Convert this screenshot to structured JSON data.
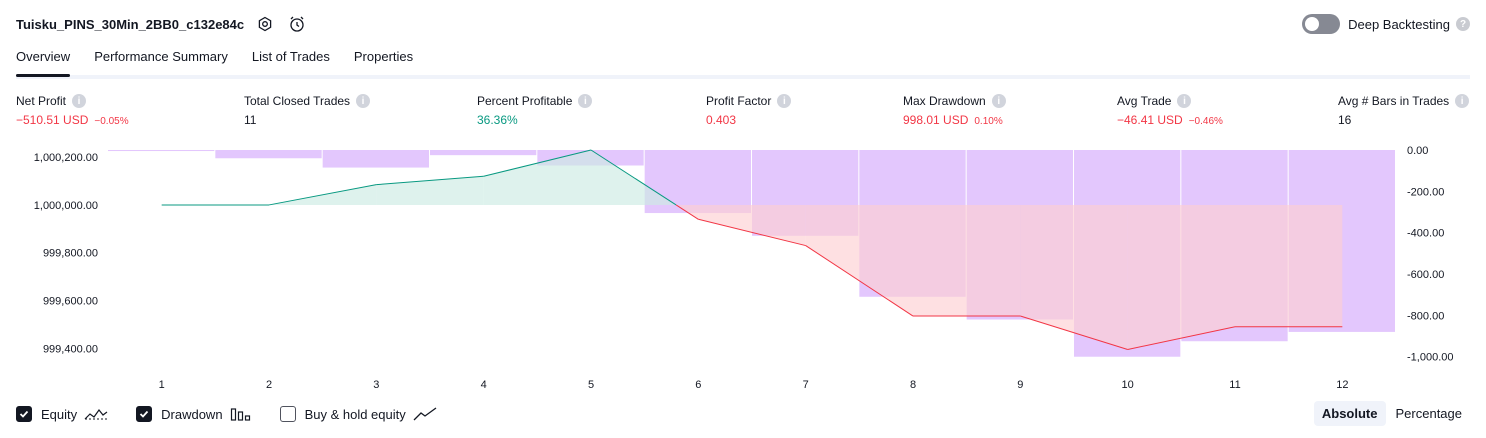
{
  "header": {
    "title": "Tuisku_PINS_30Min_2BB0_c132e84c",
    "deep_backtesting_label": "Deep Backtesting",
    "help_glyph": "?"
  },
  "tabs": [
    {
      "label": "Overview",
      "active": true
    },
    {
      "label": "Performance Summary",
      "active": false
    },
    {
      "label": "List of Trades",
      "active": false
    },
    {
      "label": "Properties",
      "active": false
    }
  ],
  "metrics": {
    "net_profit": {
      "label": "Net Profit",
      "value": "−510.51 USD",
      "pct": "−0.05%"
    },
    "total_closed_trades": {
      "label": "Total Closed Trades",
      "value": "11"
    },
    "percent_profitable": {
      "label": "Percent Profitable",
      "value": "36.36%"
    },
    "profit_factor": {
      "label": "Profit Factor",
      "value": "0.403"
    },
    "max_drawdown": {
      "label": "Max Drawdown",
      "value": "998.01 USD",
      "pct": "0.10%"
    },
    "avg_trade": {
      "label": "Avg Trade",
      "value": "−46.41 USD",
      "pct": "−0.46%"
    },
    "avg_bars": {
      "label": "Avg # Bars in Trades",
      "value": "16"
    }
  },
  "legend": {
    "equity": {
      "label": "Equity",
      "checked": true
    },
    "drawdown": {
      "label": "Drawdown",
      "checked": true
    },
    "buy_hold": {
      "label": "Buy & hold equity",
      "checked": false
    }
  },
  "mode": {
    "absolute": "Absolute",
    "percentage": "Percentage",
    "selected": "Absolute"
  },
  "colors": {
    "positive": "#089981",
    "negative": "#f23645",
    "drawdown_bar": "#e1c4fd",
    "equity_fill_pos": "#cdebe3",
    "equity_fill_neg": "#fdd0d3"
  },
  "chart_data": {
    "type": "line",
    "x": [
      1,
      2,
      3,
      4,
      5,
      6,
      7,
      8,
      9,
      10,
      11,
      12
    ],
    "x_ticks": [
      "1",
      "2",
      "3",
      "4",
      "5",
      "6",
      "7",
      "8",
      "9",
      "10",
      "11",
      "12"
    ],
    "equity_axis": {
      "ticks": [
        "1,000,200.00",
        "1,000,000.00",
        "999,800.00",
        "999,600.00",
        "999,400.00"
      ],
      "range": [
        999330,
        1000230
      ]
    },
    "drawdown_axis": {
      "ticks": [
        "0.00",
        "-200.00",
        "-400.00",
        "-600.00",
        "-800.00",
        "-1,000.00"
      ],
      "range": [
        -1040,
        0
      ]
    },
    "baseline": 1000000,
    "series": [
      {
        "name": "Equity",
        "values": [
          1000000,
          1000000,
          1000085,
          1000120,
          1000230,
          999940,
          999830,
          999535,
          999535,
          999395,
          999490,
          999490
        ]
      },
      {
        "name": "Drawdown",
        "values": [
          -5,
          -40,
          -85,
          -25,
          -75,
          -305,
          -415,
          -710,
          -820,
          -1000,
          -925,
          -880
        ]
      }
    ]
  }
}
